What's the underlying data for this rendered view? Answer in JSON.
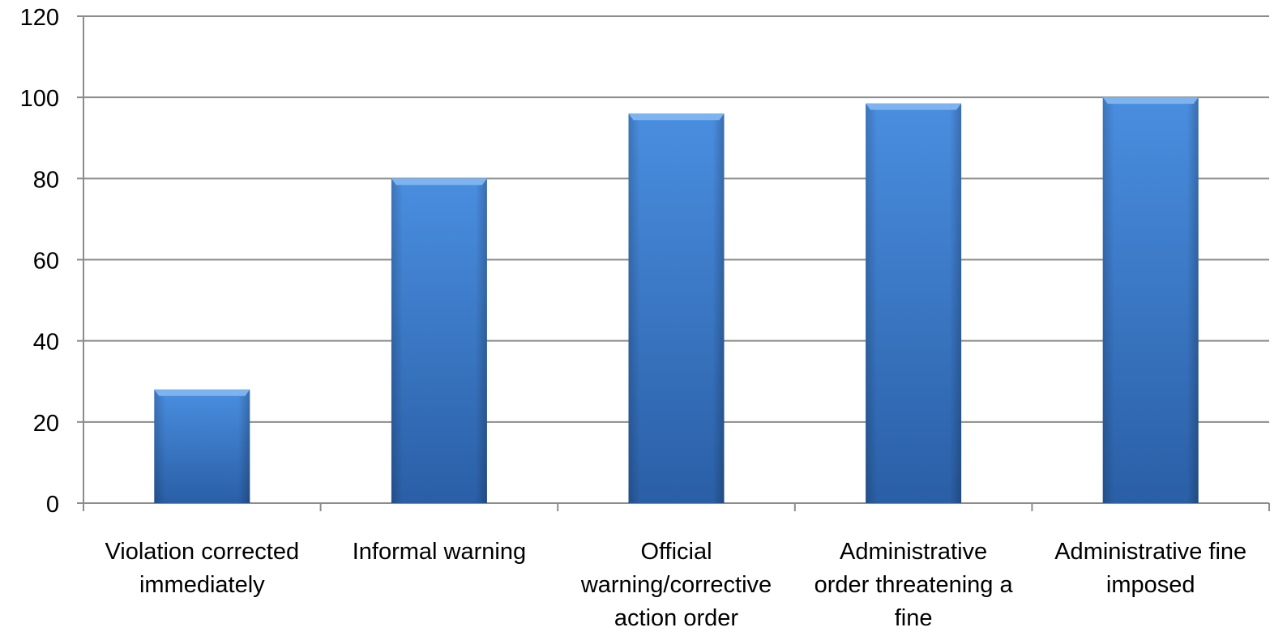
{
  "chart_data": {
    "type": "bar",
    "categories": [
      [
        "Violation corrected",
        "immediately"
      ],
      [
        "Informal warning"
      ],
      [
        "Official",
        "warning/corrective",
        "action order"
      ],
      [
        "Administrative",
        "order threatening a",
        "fine"
      ],
      [
        "Administrative fine",
        "imposed"
      ]
    ],
    "values": [
      28,
      80,
      96,
      98.5,
      100
    ],
    "y_ticks": [
      0,
      20,
      40,
      60,
      80,
      100,
      120
    ],
    "ylim": [
      0,
      120
    ],
    "title": "",
    "xlabel": "",
    "ylabel": "",
    "grid": true,
    "legend": "none",
    "colors": {
      "bar_top": "#4a8ee0",
      "bar_bottom": "#2a5fa6",
      "bar_cap": "#7db4f0",
      "grid": "#8c8c8c"
    }
  }
}
